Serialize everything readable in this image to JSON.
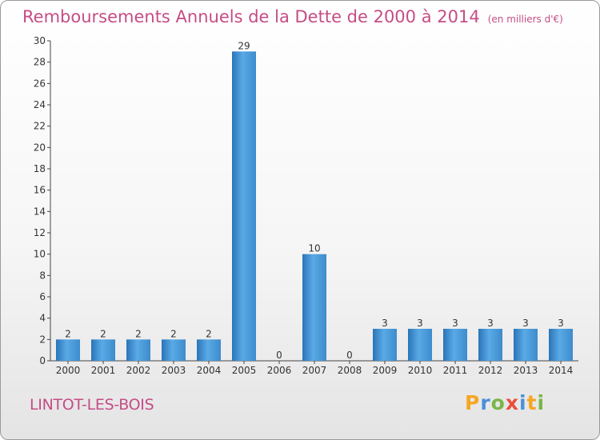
{
  "header": {
    "title": "Remboursements Annuels de la Dette de 2000 à 2014",
    "unit": "(en milliers d'€)"
  },
  "footer": {
    "commune": "LINTOT-LES-BOIS",
    "logo": {
      "text": "Proxiti",
      "letters": [
        {
          "c": "P",
          "color": "#f5a623"
        },
        {
          "c": "r",
          "color": "#4a90d9"
        },
        {
          "c": "o",
          "color": "#7ab648"
        },
        {
          "c": "x",
          "color": "#e94e3d"
        },
        {
          "c": "i",
          "color": "#4a90d9"
        },
        {
          "c": "t",
          "color": "#f5a623"
        },
        {
          "c": "i",
          "color": "#7ab648"
        }
      ]
    }
  },
  "chart_data": {
    "type": "bar",
    "title": "Remboursements Annuels de la Dette de 2000 à 2014",
    "subtitle": "(en milliers d'€)",
    "categories": [
      "2000",
      "2001",
      "2002",
      "2003",
      "2004",
      "2005",
      "2006",
      "2007",
      "2008",
      "2009",
      "2010",
      "2011",
      "2012",
      "2013",
      "2014"
    ],
    "values": [
      2,
      2,
      2,
      2,
      2,
      29,
      0,
      10,
      0,
      3,
      3,
      3,
      3,
      3,
      3
    ],
    "ylim": [
      0,
      30
    ],
    "yticks": [
      0,
      2,
      4,
      6,
      8,
      10,
      12,
      14,
      16,
      18,
      20,
      22,
      24,
      26,
      28,
      30
    ],
    "bar_color": "#4a97d6",
    "grid": false,
    "legend": "none"
  }
}
